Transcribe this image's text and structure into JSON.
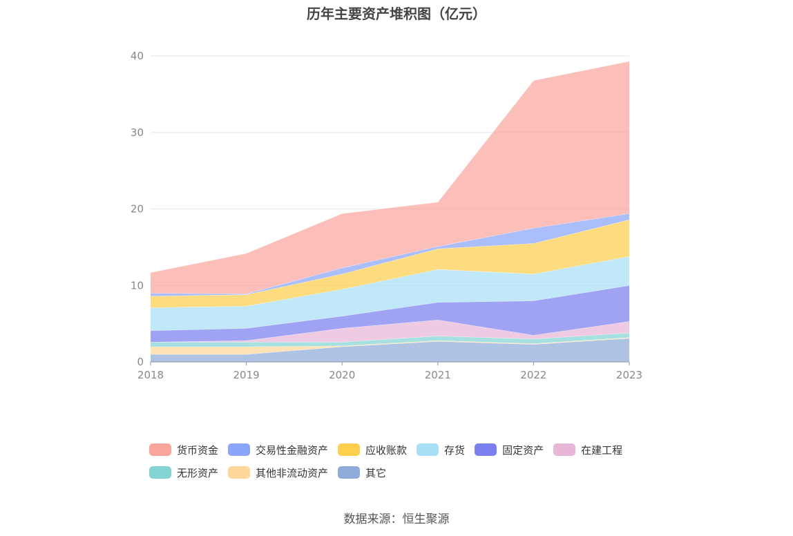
{
  "chart_data": {
    "type": "area",
    "stacked": true,
    "title": "历年主要资产堆积图（亿元）",
    "x": [
      "2018",
      "2019",
      "2020",
      "2021",
      "2022",
      "2023"
    ],
    "ylim": [
      0,
      40
    ],
    "yticks": [
      "0",
      "10",
      "20",
      "30",
      "40"
    ],
    "grid": true,
    "legend_position": "bottom",
    "series": [
      {
        "name": "其它",
        "color": "#8fabd9",
        "values": [
          1.0,
          1.0,
          2.0,
          2.7,
          2.3,
          3.1
        ]
      },
      {
        "name": "其他非流动资产",
        "color": "#fdd89a",
        "values": [
          1.0,
          1.0,
          0.1,
          0.1,
          0.1,
          0.1
        ]
      },
      {
        "name": "无形资产",
        "color": "#84d4d4",
        "values": [
          0.6,
          0.6,
          0.5,
          0.6,
          0.6,
          0.6
        ]
      },
      {
        "name": "在建工程",
        "color": "#e8b7d8",
        "values": [
          0.0,
          0.2,
          1.8,
          2.1,
          0.5,
          1.5
        ]
      },
      {
        "name": "固定资产",
        "color": "#7b7ff0",
        "values": [
          1.5,
          1.6,
          1.6,
          2.3,
          4.5,
          4.7
        ]
      },
      {
        "name": "存货",
        "color": "#a8dff7",
        "values": [
          3.0,
          2.9,
          3.5,
          4.3,
          3.5,
          3.8
        ]
      },
      {
        "name": "应收账款",
        "color": "#fccf4d",
        "values": [
          1.5,
          1.5,
          2.0,
          2.7,
          4.0,
          4.8
        ]
      },
      {
        "name": "交易性金融资产",
        "color": "#8aa5fb",
        "values": [
          0.4,
          0.1,
          0.8,
          0.3,
          2.0,
          0.8
        ]
      },
      {
        "name": "货币资金",
        "color": "#f9a59c",
        "values": [
          2.7,
          5.3,
          7.1,
          5.8,
          19.3,
          19.9
        ]
      }
    ],
    "source": "数据来源：恒生聚源"
  }
}
